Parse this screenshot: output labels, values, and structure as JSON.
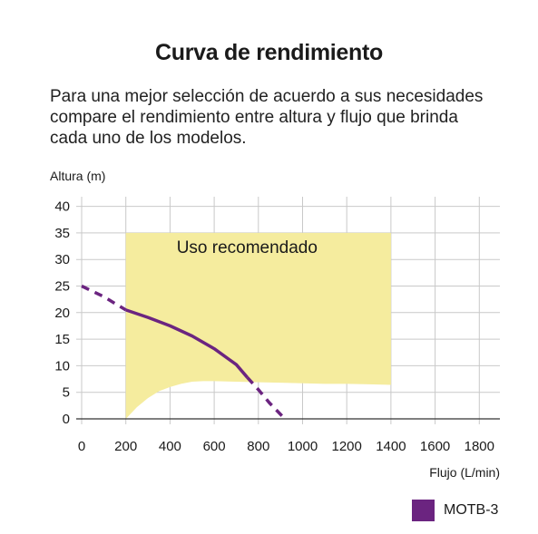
{
  "title": "Curva de rendimiento",
  "description_lines": [
    "Para una mejor selección de acuerdo a sus necesidades",
    "compare el rendimiento entre altura y flujo que brinda",
    "cada uno de los modelos."
  ],
  "colors": {
    "region": "#f5ec9e",
    "series": "#6b2480",
    "grid": "#c9c9c9",
    "axis": "#333333"
  },
  "chart_data": {
    "type": "line",
    "xlabel": "Flujo (L/min)",
    "ylabel": "Altura (m)",
    "xlim": [
      0,
      1900
    ],
    "ylim": [
      0,
      40
    ],
    "x_ticks": [
      0,
      200,
      400,
      600,
      800,
      1000,
      1200,
      1400,
      1600,
      1800
    ],
    "y_ticks": [
      0,
      5,
      10,
      15,
      20,
      25,
      30,
      35,
      40
    ],
    "grid": true,
    "region": {
      "label": "Uso recomendado",
      "x_range": [
        200,
        1400
      ],
      "top": 35,
      "bottom": [
        [
          200,
          0
        ],
        [
          250,
          2.2
        ],
        [
          300,
          3.9
        ],
        [
          350,
          5.2
        ],
        [
          400,
          6.0
        ],
        [
          450,
          6.6
        ],
        [
          500,
          7.0
        ],
        [
          550,
          7.1
        ],
        [
          600,
          7.1
        ],
        [
          700,
          7.0
        ],
        [
          800,
          6.9
        ],
        [
          900,
          6.8
        ],
        [
          1000,
          6.7
        ],
        [
          1100,
          6.6
        ],
        [
          1200,
          6.6
        ],
        [
          1300,
          6.5
        ],
        [
          1400,
          6.4
        ]
      ]
    },
    "series": [
      {
        "name": "MOTB-3",
        "dashed_start": [
          [
            0,
            25
          ],
          [
            100,
            23
          ],
          [
            200,
            20.5
          ]
        ],
        "solid": [
          [
            200,
            20.5
          ],
          [
            300,
            19.1
          ],
          [
            400,
            17.5
          ],
          [
            500,
            15.6
          ],
          [
            600,
            13.2
          ],
          [
            700,
            10.2
          ],
          [
            750,
            7.8
          ]
        ],
        "dashed_end": [
          [
            750,
            7.8
          ],
          [
            800,
            5.5
          ],
          [
            850,
            3.0
          ],
          [
            920,
            0
          ]
        ]
      }
    ],
    "legend": "bottom-right"
  }
}
